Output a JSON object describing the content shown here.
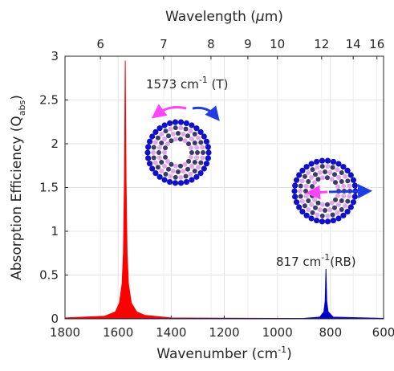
{
  "chart_data": {
    "type": "area",
    "title_top": [
      "Wavelength (",
      "μ",
      "m)"
    ],
    "xlabel": [
      "Wavenumber (cm",
      "-1",
      ")"
    ],
    "ylabel": [
      "Absorption Efficiency (Q",
      "abs",
      ")"
    ],
    "xlim": [
      1800,
      600
    ],
    "ylim": [
      0,
      3
    ],
    "xticks": [
      1800,
      1600,
      1400,
      1200,
      1000,
      800,
      600
    ],
    "yticks": [
      0,
      0.5,
      1,
      1.5,
      2,
      2.5,
      3
    ],
    "x2ticks": [
      6,
      7,
      8,
      9,
      10,
      12,
      14,
      16
    ],
    "grid": true,
    "series": [
      {
        "color": "#ff0000",
        "x": [
          1800,
          1650,
          1610,
          1595,
          1585,
          1580,
          1576,
          1573,
          1570,
          1566,
          1561,
          1550,
          1530,
          1500,
          1400,
          600
        ],
        "values": [
          0.01,
          0.03,
          0.08,
          0.18,
          0.4,
          0.75,
          1.6,
          2.95,
          1.6,
          0.75,
          0.4,
          0.18,
          0.08,
          0.04,
          0.01,
          0
        ]
      },
      {
        "color": "#0000cc",
        "x": [
          1800,
          900,
          840,
          825,
          820,
          817,
          814,
          809,
          790,
          600
        ],
        "values": [
          0,
          0.005,
          0.02,
          0.08,
          0.2,
          0.57,
          0.2,
          0.08,
          0.02,
          0.005
        ]
      }
    ],
    "annotations": [
      {
        "parts": [
          "1573 cm",
          "-1",
          " (T)"
        ]
      },
      {
        "parts": [
          "817 cm",
          "-1",
          "(RB)"
        ]
      }
    ]
  }
}
